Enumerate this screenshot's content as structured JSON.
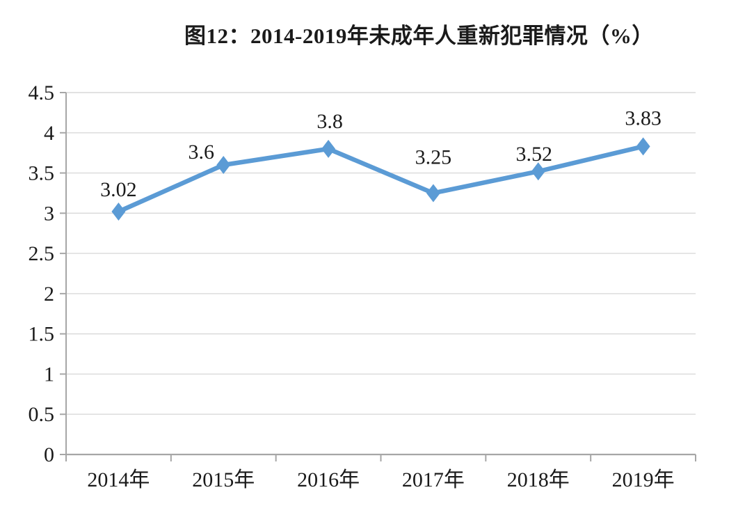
{
  "figure": {
    "title": "图12：2014-2019年未成年人重新犯罪情况（%）"
  },
  "chart_data": {
    "type": "line",
    "title": "图12：2014-2019年未成年人重新犯罪情况（%）",
    "categories": [
      "2014年",
      "2015年",
      "2016年",
      "2017年",
      "2018年",
      "2019年"
    ],
    "values": [
      3.02,
      3.6,
      3.8,
      3.25,
      3.52,
      3.83
    ],
    "point_labels": [
      "3.02",
      "3.6",
      "3.8",
      "3.25",
      "3.52",
      "3.83"
    ],
    "xlabel": "",
    "ylabel": "",
    "ylim": [
      0,
      4.5
    ],
    "ytick_step": 0.5,
    "ytick_labels": [
      "0",
      "0.5",
      "1",
      "1.5",
      "2",
      "2.5",
      "3",
      "3.5",
      "4",
      "4.5"
    ],
    "grid": true,
    "legend_position": "none",
    "marker_shape": "diamond",
    "colors": {
      "line": "#5B9BD5",
      "marker": "#5B9BD5",
      "gridline": "#D9D9D9",
      "axis": "#A6A6A6",
      "text": "#000000",
      "background": "#FFFFFF"
    }
  }
}
